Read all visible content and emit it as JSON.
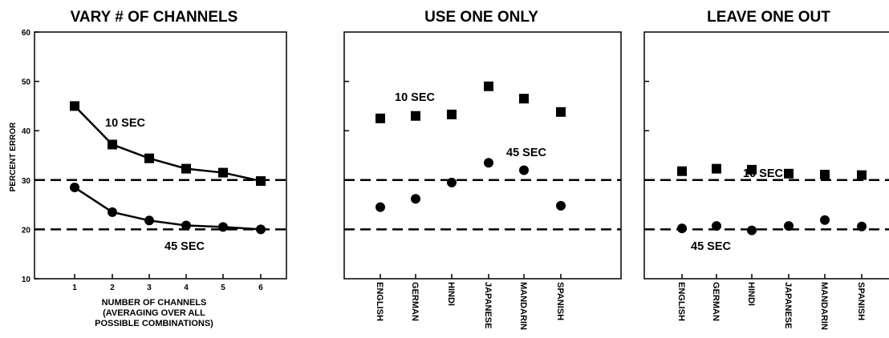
{
  "colors": {
    "marks": "#000000",
    "background": "#ffffff"
  },
  "chart_data": [
    {
      "type": "line",
      "title": "VARY # OF CHANNELS",
      "ylabel": "PERCENT ERROR",
      "xlabel_lines": [
        "NUMBER OF CHANNELS",
        "(AVERAGING OVER ALL",
        "POSSIBLE COMBINATIONS)"
      ],
      "x": [
        1,
        2,
        3,
        4,
        5,
        6
      ],
      "ylim": [
        10,
        60
      ],
      "yticks": [
        10,
        20,
        30,
        40,
        50,
        60
      ],
      "series": [
        {
          "name": "10 SEC",
          "marker": "square",
          "values": [
            45,
            37.2,
            34.4,
            32.3,
            31.5,
            29.8
          ]
        },
        {
          "name": "45 SEC",
          "marker": "circle",
          "values": [
            28.5,
            23.5,
            21.8,
            20.8,
            20.5,
            20
          ]
        }
      ],
      "reference_lines": [
        30,
        20
      ]
    },
    {
      "type": "scatter",
      "title": "USE ONE ONLY",
      "categories": [
        "ENGLISH",
        "GERMAN",
        "HINDI",
        "JAPANESE",
        "MANDARIN",
        "SPANISH"
      ],
      "ylim": [
        10,
        60
      ],
      "series": [
        {
          "name": "10 SEC",
          "marker": "square",
          "values": [
            42.5,
            43,
            43.3,
            49,
            46.5,
            43.8
          ]
        },
        {
          "name": "45 SEC",
          "marker": "circle",
          "values": [
            24.5,
            26.2,
            29.5,
            33.5,
            32,
            24.8
          ]
        }
      ],
      "reference_lines": [
        30,
        20
      ]
    },
    {
      "type": "scatter",
      "title": "LEAVE ONE OUT",
      "categories": [
        "ENGLISH",
        "GERMAN",
        "HINDI",
        "JAPANESE",
        "MANDARIN",
        "SPANISH"
      ],
      "ylim": [
        10,
        60
      ],
      "series": [
        {
          "name": "10 SEC",
          "marker": "square",
          "values": [
            31.8,
            32.3,
            32.1,
            31.3,
            31.1,
            31
          ]
        },
        {
          "name": "45 SEC",
          "marker": "circle",
          "values": [
            20.2,
            20.7,
            19.8,
            20.7,
            21.9,
            20.6
          ]
        }
      ],
      "reference_lines": [
        30,
        20
      ]
    }
  ]
}
